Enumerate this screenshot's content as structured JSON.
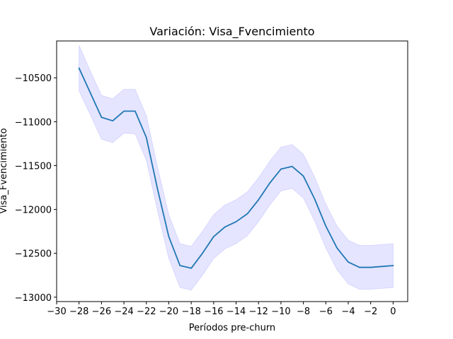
{
  "chart_data": {
    "type": "line",
    "title": "Variación: Visa_Fvencimiento",
    "xlabel": "Períodos pre-churn",
    "ylabel": "Visa_Fvencimiento",
    "xlim": [
      -30,
      1.3
    ],
    "ylim": [
      -13050,
      -10080
    ],
    "xticks": [
      -30,
      -28,
      -26,
      -24,
      -22,
      -20,
      -18,
      -16,
      -14,
      -12,
      -10,
      -8,
      -6,
      -4,
      -2,
      0
    ],
    "yticks": [
      -13000,
      -12500,
      -12000,
      -11500,
      -11000,
      -10500
    ],
    "grid": false,
    "series": [
      {
        "line_color": "#1f77b4",
        "band_color": "#0000ff",
        "x": [
          -28,
          -27,
          -26,
          -25,
          -24,
          -23,
          -22,
          -21,
          -20,
          -19,
          -18,
          -17,
          -16,
          -15,
          -14,
          -13,
          -12,
          -11,
          -10,
          -9,
          -8,
          -7,
          -6,
          -5,
          -4,
          -3,
          -2,
          -1,
          0
        ],
        "y": [
          -10390,
          -10670,
          -10950,
          -10990,
          -10880,
          -10880,
          -11180,
          -11770,
          -12310,
          -12640,
          -12670,
          -12500,
          -12310,
          -12200,
          -12140,
          -12050,
          -11890,
          -11700,
          -11540,
          -11510,
          -11620,
          -11880,
          -12190,
          -12440,
          -12600,
          -12660,
          -12660,
          -12650,
          -12640
        ],
        "lower": [
          -10650,
          -10920,
          -11200,
          -11240,
          -11130,
          -11140,
          -11440,
          -12020,
          -12560,
          -12890,
          -12920,
          -12750,
          -12560,
          -12450,
          -12390,
          -12300,
          -12140,
          -11950,
          -11790,
          -11760,
          -11870,
          -12130,
          -12440,
          -12690,
          -12850,
          -12910,
          -12910,
          -12900,
          -12890
        ],
        "upper": [
          -10130,
          -10420,
          -10700,
          -10740,
          -10630,
          -10630,
          -10930,
          -11520,
          -12060,
          -12390,
          -12420,
          -12250,
          -12060,
          -11950,
          -11890,
          -11800,
          -11640,
          -11450,
          -11290,
          -11260,
          -11370,
          -11630,
          -11940,
          -12190,
          -12350,
          -12410,
          -12410,
          -12400,
          -12390
        ]
      }
    ]
  }
}
